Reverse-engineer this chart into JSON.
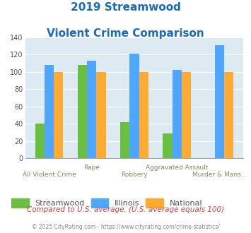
{
  "title_line1": "2019 Streamwood",
  "title_line2": "Violent Crime Comparison",
  "categories": [
    "All Violent Crime",
    "Rape",
    "Robbery",
    "Aggravated Assault",
    "Murder & Mans..."
  ],
  "streamwood": [
    40,
    108,
    42,
    29,
    0
  ],
  "illinois": [
    108,
    113,
    121,
    102,
    131
  ],
  "national": [
    100,
    100,
    100,
    100,
    100
  ],
  "colors": {
    "streamwood": "#6abf40",
    "illinois": "#4da6ff",
    "national": "#ffaa33"
  },
  "xlabels_top": [
    "",
    "Rape",
    "",
    "Aggravated Assault",
    ""
  ],
  "xlabels_bottom": [
    "All Violent Crime",
    "",
    "Robbery",
    "",
    "Murder & Mans..."
  ],
  "ylim": [
    0,
    140
  ],
  "yticks": [
    0,
    20,
    40,
    60,
    80,
    100,
    120,
    140
  ],
  "background_color": "#deeaf1",
  "title_color": "#1a6abf",
  "xlabel_color": "#888866",
  "legend_label_color": "#555555",
  "legend_labels": [
    "Streamwood",
    "Illinois",
    "National"
  ],
  "footnote1": "Compared to U.S. average. (U.S. average equals 100)",
  "footnote2": "© 2025 CityRating.com - https://www.cityrating.com/crime-statistics/",
  "footnote1_color": "#cc4444",
  "footnote2_color": "#888888"
}
